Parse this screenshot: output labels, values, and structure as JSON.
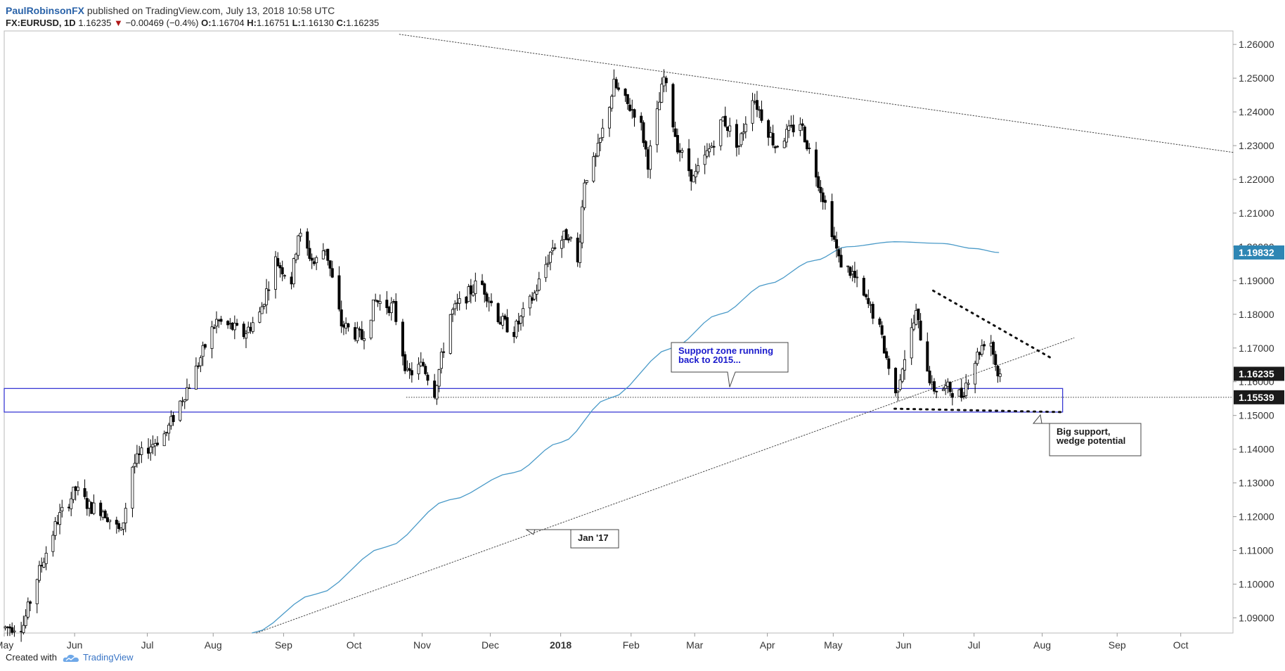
{
  "header": {
    "author": "PaulRobinsonFX",
    "published": "published on TradingView.com, July 13, 2018 10:58 UTC",
    "symbol": "FX:EURUSD, 1D",
    "last": "1.16235",
    "change_arrow": "▼",
    "change": "−0.00469 (−0.4%)",
    "o_label": "O:",
    "o_value": "1.16704",
    "h_label": "H:",
    "h_value": "1.16751",
    "l_label": "L:",
    "l_value": "1.16130",
    "c_label": "C:",
    "c_value": "1.16235"
  },
  "footer": {
    "created_with": "Created with",
    "brand": "TradingView"
  },
  "colors": {
    "candle": "#000000",
    "sma": "#4a9ac8",
    "zone": "#2b2bd0",
    "badge_sma": "#2e86b4",
    "badge_dark": "#1a1a1a",
    "annotation_text": "#1a1acc"
  },
  "chart_data": {
    "type": "candlestick",
    "symbol": "FX:EURUSD",
    "timeframe": "1D",
    "xlim": [
      "2017-05-01",
      "2018-10-24"
    ],
    "ylim": [
      1.0855,
      1.264
    ],
    "price_ticks": [
      "1.26000",
      "1.25000",
      "1.24000",
      "1.23000",
      "1.22000",
      "1.21000",
      "1.20000",
      "1.19000",
      "1.18000",
      "1.17000",
      "1.16000",
      "1.15000",
      "1.14000",
      "1.13000",
      "1.12000",
      "1.11000",
      "1.10000",
      "1.09000"
    ],
    "time_labels": [
      {
        "label": "May",
        "date": "2017-05-01"
      },
      {
        "label": "Jun",
        "date": "2017-06-01"
      },
      {
        "label": "Jul",
        "date": "2017-07-03"
      },
      {
        "label": "Aug",
        "date": "2017-08-01"
      },
      {
        "label": "Sep",
        "date": "2017-09-01"
      },
      {
        "label": "Oct",
        "date": "2017-10-02"
      },
      {
        "label": "Nov",
        "date": "2017-11-01"
      },
      {
        "label": "Dec",
        "date": "2017-12-01"
      },
      {
        "label": "2018",
        "date": "2018-01-01",
        "bold": true
      },
      {
        "label": "Feb",
        "date": "2018-02-01"
      },
      {
        "label": "Mar",
        "date": "2018-03-01"
      },
      {
        "label": "Apr",
        "date": "2018-04-02"
      },
      {
        "label": "May",
        "date": "2018-05-01"
      },
      {
        "label": "Jun",
        "date": "2018-06-01"
      },
      {
        "label": "Jul",
        "date": "2018-07-02"
      },
      {
        "label": "Aug",
        "date": "2018-08-01"
      },
      {
        "label": "Sep",
        "date": "2018-09-03"
      },
      {
        "label": "Oct",
        "date": "2018-10-01"
      }
    ],
    "price_path": [
      [
        "2017-05-01",
        1.087
      ],
      [
        "2017-05-10",
        1.088
      ],
      [
        "2017-05-16",
        1.102
      ],
      [
        "2017-05-25",
        1.119
      ],
      [
        "2017-06-02",
        1.128
      ],
      [
        "2017-06-08",
        1.123
      ],
      [
        "2017-06-14",
        1.122
      ],
      [
        "2017-06-22",
        1.115
      ],
      [
        "2017-06-27",
        1.135
      ],
      [
        "2017-07-03",
        1.14
      ],
      [
        "2017-07-12",
        1.145
      ],
      [
        "2017-07-18",
        1.154
      ],
      [
        "2017-07-24",
        1.162
      ],
      [
        "2017-07-31",
        1.174
      ],
      [
        "2017-08-03",
        1.178
      ],
      [
        "2017-08-10",
        1.176
      ],
      [
        "2017-08-15",
        1.174
      ],
      [
        "2017-08-22",
        1.18
      ],
      [
        "2017-08-29",
        1.196
      ],
      [
        "2017-09-05",
        1.19
      ],
      [
        "2017-09-08",
        1.204
      ],
      [
        "2017-09-15",
        1.195
      ],
      [
        "2017-09-20",
        1.2
      ],
      [
        "2017-09-27",
        1.177
      ],
      [
        "2017-10-06",
        1.173
      ],
      [
        "2017-10-12",
        1.184
      ],
      [
        "2017-10-20",
        1.182
      ],
      [
        "2017-10-26",
        1.162
      ],
      [
        "2017-11-02",
        1.165
      ],
      [
        "2017-11-07",
        1.157
      ],
      [
        "2017-11-14",
        1.18
      ],
      [
        "2017-11-27",
        1.19
      ],
      [
        "2017-12-06",
        1.178
      ],
      [
        "2017-12-12",
        1.175
      ],
      [
        "2017-12-21",
        1.186
      ],
      [
        "2017-12-29",
        1.2
      ],
      [
        "2018-01-05",
        1.204
      ],
      [
        "2018-01-09",
        1.195
      ],
      [
        "2018-01-12",
        1.22
      ],
      [
        "2018-01-17",
        1.226
      ],
      [
        "2018-01-25",
        1.248
      ],
      [
        "2018-01-31",
        1.242
      ],
      [
        "2018-02-05",
        1.239
      ],
      [
        "2018-02-09",
        1.225
      ],
      [
        "2018-02-16",
        1.25
      ],
      [
        "2018-02-22",
        1.23
      ],
      [
        "2018-03-01",
        1.22
      ],
      [
        "2018-03-09",
        1.23
      ],
      [
        "2018-03-14",
        1.238
      ],
      [
        "2018-03-21",
        1.23
      ],
      [
        "2018-03-27",
        1.245
      ],
      [
        "2018-04-06",
        1.23
      ],
      [
        "2018-04-12",
        1.234
      ],
      [
        "2018-04-17",
        1.237
      ],
      [
        "2018-04-24",
        1.222
      ],
      [
        "2018-04-30",
        1.208
      ],
      [
        "2018-05-04",
        1.196
      ],
      [
        "2018-05-10",
        1.192
      ],
      [
        "2018-05-15",
        1.185
      ],
      [
        "2018-05-21",
        1.178
      ],
      [
        "2018-05-29",
        1.156
      ],
      [
        "2018-06-01",
        1.165
      ],
      [
        "2018-06-07",
        1.18
      ],
      [
        "2018-06-14",
        1.158
      ],
      [
        "2018-06-21",
        1.158
      ],
      [
        "2018-06-27",
        1.156
      ],
      [
        "2018-07-02",
        1.165
      ],
      [
        "2018-07-09",
        1.175
      ],
      [
        "2018-07-13",
        1.16235
      ]
    ],
    "sma": [
      [
        "2017-08-18",
        1.0855
      ],
      [
        "2017-09-15",
        1.097
      ],
      [
        "2017-10-16",
        1.111
      ],
      [
        "2017-11-13",
        1.125
      ],
      [
        "2017-12-11",
        1.133
      ],
      [
        "2018-01-01",
        1.142
      ],
      [
        "2018-01-22",
        1.155
      ],
      [
        "2018-02-19",
        1.17
      ],
      [
        "2018-03-12",
        1.18
      ],
      [
        "2018-04-02",
        1.189
      ],
      [
        "2018-04-23",
        1.196
      ],
      [
        "2018-05-07",
        1.2
      ],
      [
        "2018-05-28",
        1.2015
      ],
      [
        "2018-06-18",
        1.201
      ],
      [
        "2018-07-02",
        1.1995
      ],
      [
        "2018-07-13",
        1.19832
      ]
    ],
    "badges": [
      {
        "value": "1.19832",
        "kind": "sma"
      },
      {
        "value": "1.16235",
        "kind": "last"
      },
      {
        "value": "1.15539",
        "kind": "line"
      }
    ],
    "support_zone": {
      "from": "2017-05-01",
      "to": "2018-08-10",
      "price_low": 1.151,
      "price_high": 1.158
    },
    "horizontal_line": {
      "from": "2017-10-25",
      "price": 1.15539
    },
    "trendlines": [
      {
        "name": "descending-resistance",
        "style": "dotted-thin",
        "p1": [
          "2017-10-22",
          1.263
        ],
        "p2": [
          "2018-10-24",
          1.228
        ]
      },
      {
        "name": "jan-17-support",
        "style": "dotted-thin",
        "p1": [
          "2017-08-20",
          1.0855
        ],
        "p2": [
          "2018-08-15",
          1.173
        ]
      },
      {
        "name": "wedge-upper",
        "style": "dotted-bold",
        "p1": [
          "2018-06-14",
          1.187
        ],
        "p2": [
          "2018-08-05",
          1.167
        ]
      },
      {
        "name": "wedge-lower",
        "style": "dotted-bold",
        "p1": [
          "2018-05-28",
          1.152
        ],
        "p2": [
          "2018-08-10",
          1.151
        ]
      }
    ],
    "annotations": [
      {
        "name": "support-zone-callout",
        "lines": [
          "Support zone running",
          "back to 2015..."
        ],
        "color": "blue"
      },
      {
        "name": "big-support-callout",
        "lines": [
          "Big support,",
          "wedge potential"
        ],
        "color": "dark"
      },
      {
        "name": "jan17-callout",
        "lines": [
          "Jan '17"
        ],
        "color": "dark"
      }
    ]
  }
}
